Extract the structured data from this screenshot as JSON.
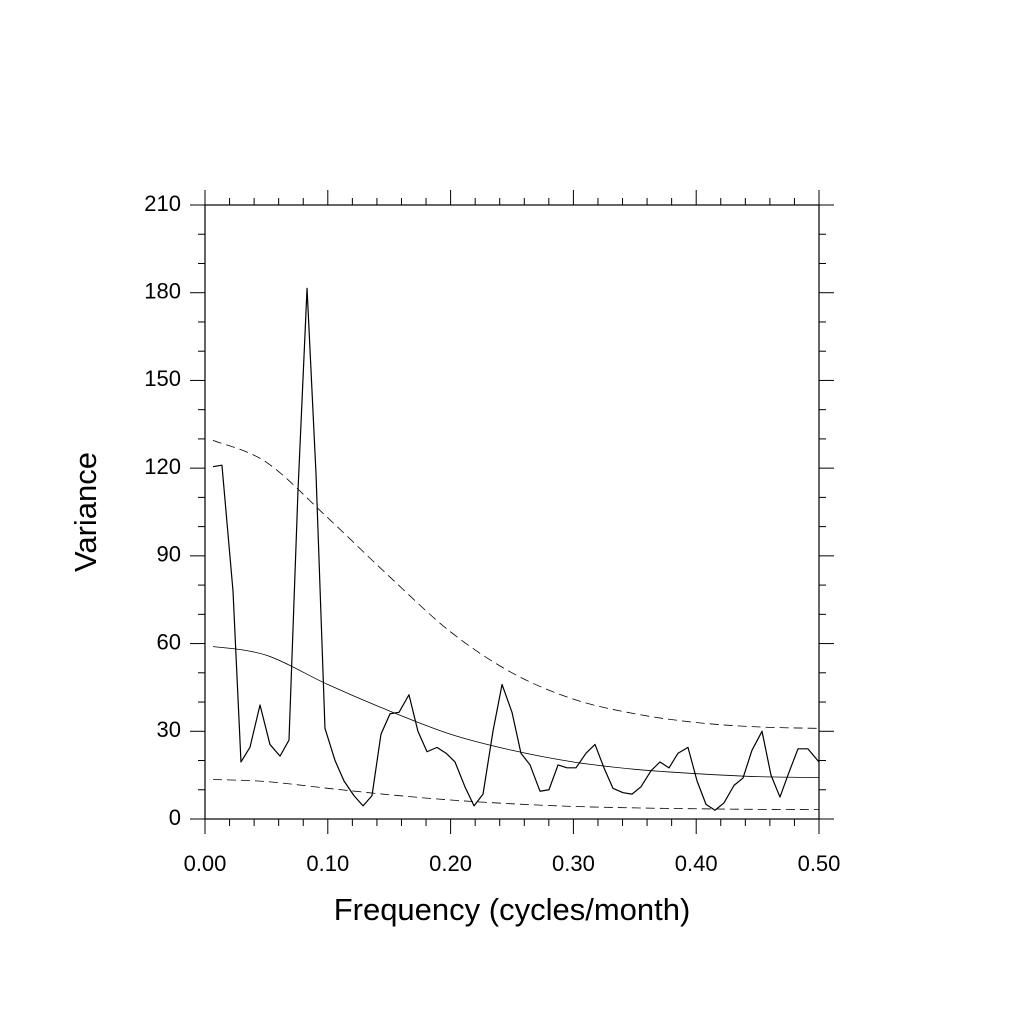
{
  "chart_data": {
    "type": "line",
    "xlabel": "Frequency (cycles/month)",
    "ylabel": "Variance",
    "xlim": [
      0,
      0.5
    ],
    "ylim": [
      0,
      210
    ],
    "xticks": [
      {
        "value": 0,
        "label": "0.00"
      },
      {
        "value": 0.1,
        "label": "0.10"
      },
      {
        "value": 0.2,
        "label": "0.20"
      },
      {
        "value": 0.3,
        "label": "0.30"
      },
      {
        "value": 0.4,
        "label": "0.40"
      },
      {
        "value": 0.5,
        "label": "0.50"
      }
    ],
    "yticks": [
      0,
      30,
      60,
      90,
      120,
      150,
      180,
      210
    ],
    "series": [
      {
        "color": "#000000",
        "dash": "solid",
        "width": 1.2,
        "x": [
          0.0065,
          0.0138,
          0.0228,
          0.0293,
          0.0366,
          0.0448,
          0.0529,
          0.0611,
          0.0684,
          0.0757,
          0.0831,
          0.0904,
          0.0977,
          0.1059,
          0.1132,
          0.1213,
          0.1287,
          0.136,
          0.1433,
          0.1507,
          0.158,
          0.1661,
          0.1734,
          0.1808,
          0.1889,
          0.1963,
          0.2036,
          0.2117,
          0.2191,
          0.2264,
          0.2345,
          0.2419,
          0.25,
          0.2573,
          0.2647,
          0.2728,
          0.2801,
          0.2875,
          0.2948,
          0.3021,
          0.3103,
          0.3176,
          0.3249,
          0.3322,
          0.3404,
          0.3477,
          0.355,
          0.3632,
          0.3705,
          0.3779,
          0.3852,
          0.3933,
          0.4007,
          0.408,
          0.4153,
          0.4226,
          0.4308,
          0.4381,
          0.4454,
          0.4536,
          0.4609,
          0.4682,
          0.4756,
          0.4829,
          0.491,
          0.5
        ],
        "values": [
          120.5,
          121,
          78,
          19.5,
          24.5,
          39,
          25.5,
          21.5,
          27,
          112,
          181.5,
          118,
          31,
          20,
          13,
          8,
          4.5,
          8,
          29,
          36,
          36.5,
          42.5,
          30,
          23,
          24.5,
          22.5,
          19.5,
          11,
          4.5,
          8.5,
          30,
          46,
          36.5,
          22.5,
          18.5,
          9.5,
          10,
          18.5,
          17.5,
          17.5,
          22.5,
          25.5,
          17.5,
          10.5,
          9,
          8.5,
          11,
          16.5,
          19.5,
          17.5,
          22.5,
          24.5,
          13,
          5,
          3,
          5.5,
          11.5,
          14,
          23.5,
          30,
          15,
          7.5,
          16,
          24,
          24,
          19.5
        ]
      },
      {
        "color": "#000000",
        "dash": "solid",
        "width": 0.8,
        "x": [
          0.0065,
          0.05,
          0.1,
          0.15,
          0.2,
          0.25,
          0.3,
          0.35,
          0.4,
          0.45,
          0.5
        ],
        "values": [
          59,
          56,
          46,
          37,
          29,
          23.5,
          19.5,
          17,
          15.5,
          14.5,
          14.2
        ]
      },
      {
        "color": "#000000",
        "dash": "dashed",
        "width": 0.8,
        "x": [
          0.0065,
          0.05,
          0.1,
          0.15,
          0.2,
          0.25,
          0.3,
          0.35,
          0.4,
          0.45,
          0.5
        ],
        "values": [
          129.5,
          122,
          103,
          83,
          64,
          50,
          41,
          36,
          33,
          31.5,
          31
        ]
      },
      {
        "color": "#000000",
        "dash": "dashed",
        "width": 0.8,
        "x": [
          0.0065,
          0.05,
          0.1,
          0.15,
          0.2,
          0.25,
          0.3,
          0.35,
          0.4,
          0.45,
          0.5
        ],
        "values": [
          13.5,
          12.8,
          10.5,
          8.3,
          6.5,
          5.2,
          4.3,
          3.8,
          3.5,
          3.3,
          3.2
        ]
      }
    ]
  }
}
